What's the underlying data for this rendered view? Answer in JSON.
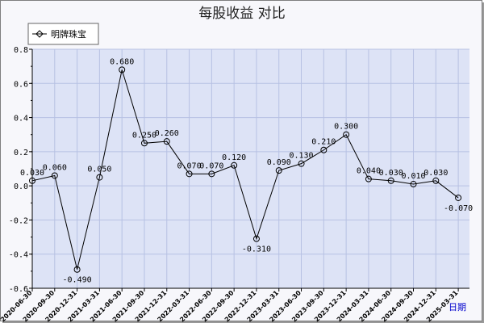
{
  "chart_data": {
    "type": "line",
    "title": "每股收益  对比",
    "xlabel": "日期",
    "ylabel": "",
    "ylim": [
      -0.6,
      0.8
    ],
    "yticks": [
      "0.8",
      "0.6",
      "0.4",
      "0.2",
      "0.0",
      "-0.2",
      "-0.4",
      "-0.6"
    ],
    "grid": true,
    "legend_position": "top-left",
    "categories": [
      "2020-06-30",
      "2020-09-30",
      "2020-12-31",
      "2021-03-31",
      "2021-06-30",
      "2021-09-30",
      "2021-12-31",
      "2022-03-31",
      "2022-06-30",
      "2022-09-30",
      "2022-12-31",
      "2023-03-31",
      "2023-06-30",
      "2023-09-30",
      "2023-12-31",
      "2024-03-31",
      "2024-06-30",
      "2024-09-30",
      "2024-12-31",
      "2025-03-31"
    ],
    "series": [
      {
        "name": "明牌珠宝",
        "values": [
          0.03,
          0.06,
          -0.49,
          0.05,
          0.68,
          0.25,
          0.26,
          0.07,
          0.07,
          0.12,
          -0.31,
          0.09,
          0.13,
          0.21,
          0.3,
          0.04,
          0.03,
          0.01,
          0.03,
          -0.07
        ],
        "labels": [
          "0.030",
          "0.060",
          "-0.490",
          "0.050",
          "0.680",
          "0.250",
          "0.260",
          "0.070",
          "0.070",
          "0.120",
          "-0.310",
          "0.090",
          "0.130",
          "0.210",
          "0.300",
          "0.040",
          "0.030",
          "0.010",
          "0.030",
          "-0.070"
        ]
      }
    ]
  },
  "colors": {
    "plot_background": "#dde3f6",
    "grid": "#b7c1e3",
    "line": "#000000",
    "xaxis_name": "#0000cc"
  }
}
